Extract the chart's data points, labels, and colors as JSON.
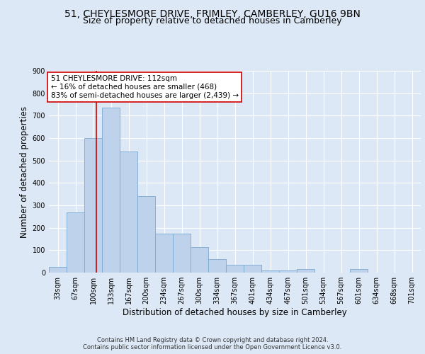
{
  "title1": "51, CHEYLESMORE DRIVE, FRIMLEY, CAMBERLEY, GU16 9BN",
  "title2": "Size of property relative to detached houses in Camberley",
  "xlabel": "Distribution of detached houses by size in Camberley",
  "ylabel": "Number of detached properties",
  "bin_labels": [
    "33sqm",
    "67sqm",
    "100sqm",
    "133sqm",
    "167sqm",
    "200sqm",
    "234sqm",
    "267sqm",
    "300sqm",
    "334sqm",
    "367sqm",
    "401sqm",
    "434sqm",
    "467sqm",
    "501sqm",
    "534sqm",
    "567sqm",
    "601sqm",
    "634sqm",
    "668sqm",
    "701sqm"
  ],
  "bar_heights": [
    25,
    270,
    600,
    735,
    540,
    340,
    175,
    175,
    115,
    60,
    35,
    35,
    10,
    10,
    15,
    0,
    0,
    15,
    0,
    0,
    0
  ],
  "bar_color": "#bed3eb",
  "bar_edge_color": "#7aaad0",
  "annotation_text": "51 CHEYLESMORE DRIVE: 112sqm\n← 16% of detached houses are smaller (468)\n83% of semi-detached houses are larger (2,439) →",
  "vline_color": "#cc0000",
  "vline_x": 2.18,
  "annotation_box_color": "#cc0000",
  "ylim": [
    0,
    900
  ],
  "yticks": [
    0,
    100,
    200,
    300,
    400,
    500,
    600,
    700,
    800,
    900
  ],
  "footer_text": "Contains HM Land Registry data © Crown copyright and database right 2024.\nContains public sector information licensed under the Open Government Licence v3.0.",
  "fig_bg_color": "#dce8f5",
  "plot_bg_color": "#dce8f5",
  "title_fontsize": 10,
  "subtitle_fontsize": 9,
  "axis_label_fontsize": 8.5,
  "tick_fontsize": 7,
  "annotation_fontsize": 7.5,
  "footer_fontsize": 6
}
